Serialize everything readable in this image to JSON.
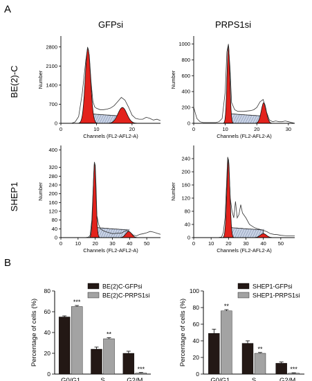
{
  "panel_labels": {
    "a": "A",
    "b": "B"
  },
  "col_labels": [
    "GFPsi",
    "PRPS1si"
  ],
  "row_labels": [
    "BE(2)-C",
    "SHEP1"
  ],
  "colors": {
    "g1_fill": "#e3221c",
    "s_fill": "#c9d3e6",
    "bar_dark": "#231815",
    "bar_light": "#a3a3a3"
  },
  "chart_data": [
    {
      "type": "area",
      "id": "hist-be2c-gfp",
      "ylabel": "Number",
      "xlabel": "Channels (FL2-AFL2-A)",
      "xlim": [
        0,
        28
      ],
      "ylim": [
        0,
        3200
      ],
      "xticks": [
        0,
        10,
        20
      ],
      "yticks": [
        0,
        700,
        1400,
        2100,
        2800
      ],
      "x": [
        0,
        1,
        2,
        3,
        4,
        5,
        6,
        7,
        7.5,
        8,
        8.5,
        9,
        9.5,
        10,
        11,
        12,
        13,
        14,
        15,
        16,
        17,
        18,
        19,
        20,
        21,
        22,
        23,
        24,
        25,
        26,
        27,
        28
      ],
      "values": [
        0,
        0,
        0,
        0,
        50,
        250,
        1100,
        2300,
        2800,
        2500,
        1500,
        800,
        600,
        550,
        500,
        500,
        520,
        560,
        650,
        800,
        950,
        850,
        600,
        300,
        180,
        150,
        150,
        220,
        180,
        120,
        150,
        100
      ]
    },
    {
      "type": "area",
      "id": "hist-be2c-prps1",
      "ylabel": "Number",
      "xlabel": "Channels (FL2-AFL2-A)",
      "xlim": [
        0,
        32
      ],
      "ylim": [
        0,
        1100
      ],
      "xticks": [
        0,
        10,
        20,
        30
      ],
      "yticks": [
        0,
        200,
        400,
        600,
        800,
        1000
      ],
      "x": [
        0,
        1,
        2,
        3,
        4,
        5,
        6,
        7,
        8,
        9,
        10,
        10.5,
        11,
        11.5,
        12,
        13,
        14,
        15,
        16,
        17,
        18,
        19,
        20,
        21,
        22,
        23,
        24,
        25,
        26,
        27,
        28,
        29,
        30,
        31,
        32
      ],
      "values": [
        200,
        60,
        20,
        10,
        10,
        10,
        10,
        10,
        20,
        60,
        400,
        900,
        1000,
        700,
        260,
        170,
        150,
        150,
        150,
        155,
        160,
        170,
        200,
        270,
        300,
        150,
        40,
        20,
        30,
        20,
        20,
        30,
        20,
        10,
        0
      ]
    },
    {
      "type": "area",
      "id": "hist-shep1-gfp",
      "ylabel": "Number",
      "xlabel": "Channels (FL2-AFL2-A)",
      "xlim": [
        0,
        58
      ],
      "ylim": [
        0,
        420
      ],
      "xticks": [
        0,
        10,
        20,
        30,
        40,
        50
      ],
      "yticks": [
        0,
        40,
        80,
        120,
        160,
        200,
        240,
        280,
        320,
        400
      ],
      "x": [
        0,
        5,
        10,
        14,
        16,
        17,
        18,
        19,
        19.5,
        20,
        20.5,
        21,
        22,
        23,
        25,
        27,
        30,
        33,
        35,
        37,
        38,
        39,
        40,
        41,
        42,
        44,
        46,
        48,
        50,
        52,
        54,
        56,
        58
      ],
      "values": [
        0,
        0,
        0,
        0,
        2,
        10,
        80,
        260,
        345,
        330,
        230,
        100,
        60,
        40,
        30,
        25,
        18,
        20,
        20,
        28,
        32,
        30,
        27,
        20,
        12,
        8,
        15,
        18,
        22,
        28,
        25,
        20,
        15
      ]
    },
    {
      "type": "area",
      "id": "hist-shep1-prps1",
      "ylabel": "Number",
      "xlabel": "Channels (FL2-AFL2-A)",
      "xlim": [
        0,
        58
      ],
      "ylim": [
        0,
        280
      ],
      "xticks": [
        0,
        10,
        20,
        30,
        40,
        50
      ],
      "yticks": [
        0,
        40,
        80,
        120,
        160,
        200,
        240
      ],
      "x": [
        0,
        5,
        10,
        14,
        16,
        17,
        18,
        19,
        19.5,
        20,
        20.5,
        21,
        22,
        23,
        24,
        25,
        26,
        27,
        28,
        30,
        32,
        35,
        38,
        40,
        42,
        44,
        46,
        48,
        50,
        52,
        55,
        58
      ],
      "values": [
        0,
        0,
        0,
        0,
        2,
        15,
        60,
        180,
        245,
        235,
        180,
        120,
        80,
        60,
        110,
        60,
        70,
        100,
        75,
        60,
        40,
        30,
        25,
        22,
        18,
        12,
        10,
        9,
        7,
        6,
        5,
        5
      ]
    },
    {
      "type": "bar",
      "id": "bar-be2c",
      "ylabel": "Percentage of cells (%)",
      "categories": [
        "G0/G1",
        "S",
        "G2/M"
      ],
      "ylim": [
        0,
        80
      ],
      "yticks": [
        0,
        20,
        40,
        60,
        80
      ],
      "series": [
        {
          "name": "BE(2)C-GFPsi",
          "values": [
            55,
            24,
            20
          ],
          "errors": [
            1,
            2,
            2
          ],
          "sig": [
            "",
            "",
            ""
          ]
        },
        {
          "name": "BE(2)C-PRPS1si",
          "values": [
            65,
            34,
            1
          ],
          "errors": [
            1,
            1,
            0.5
          ],
          "sig": [
            "***",
            "**",
            "***"
          ]
        }
      ]
    },
    {
      "type": "bar",
      "id": "bar-shep1",
      "ylabel": "Percentage of cells (%)",
      "categories": [
        "G0/G1",
        "S",
        "G2/M"
      ],
      "ylim": [
        0,
        100
      ],
      "yticks": [
        0,
        20,
        40,
        60,
        80,
        100
      ],
      "series": [
        {
          "name": "SHEP1-GFPsi",
          "values": [
            49,
            37,
            13
          ],
          "errors": [
            5,
            3,
            1.5
          ],
          "sig": [
            "",
            "",
            ""
          ]
        },
        {
          "name": "SHEP1-PRPS1si",
          "values": [
            76,
            25,
            1
          ],
          "errors": [
            1.5,
            1,
            0.5
          ],
          "sig": [
            "**",
            "**",
            "***"
          ]
        }
      ]
    }
  ]
}
